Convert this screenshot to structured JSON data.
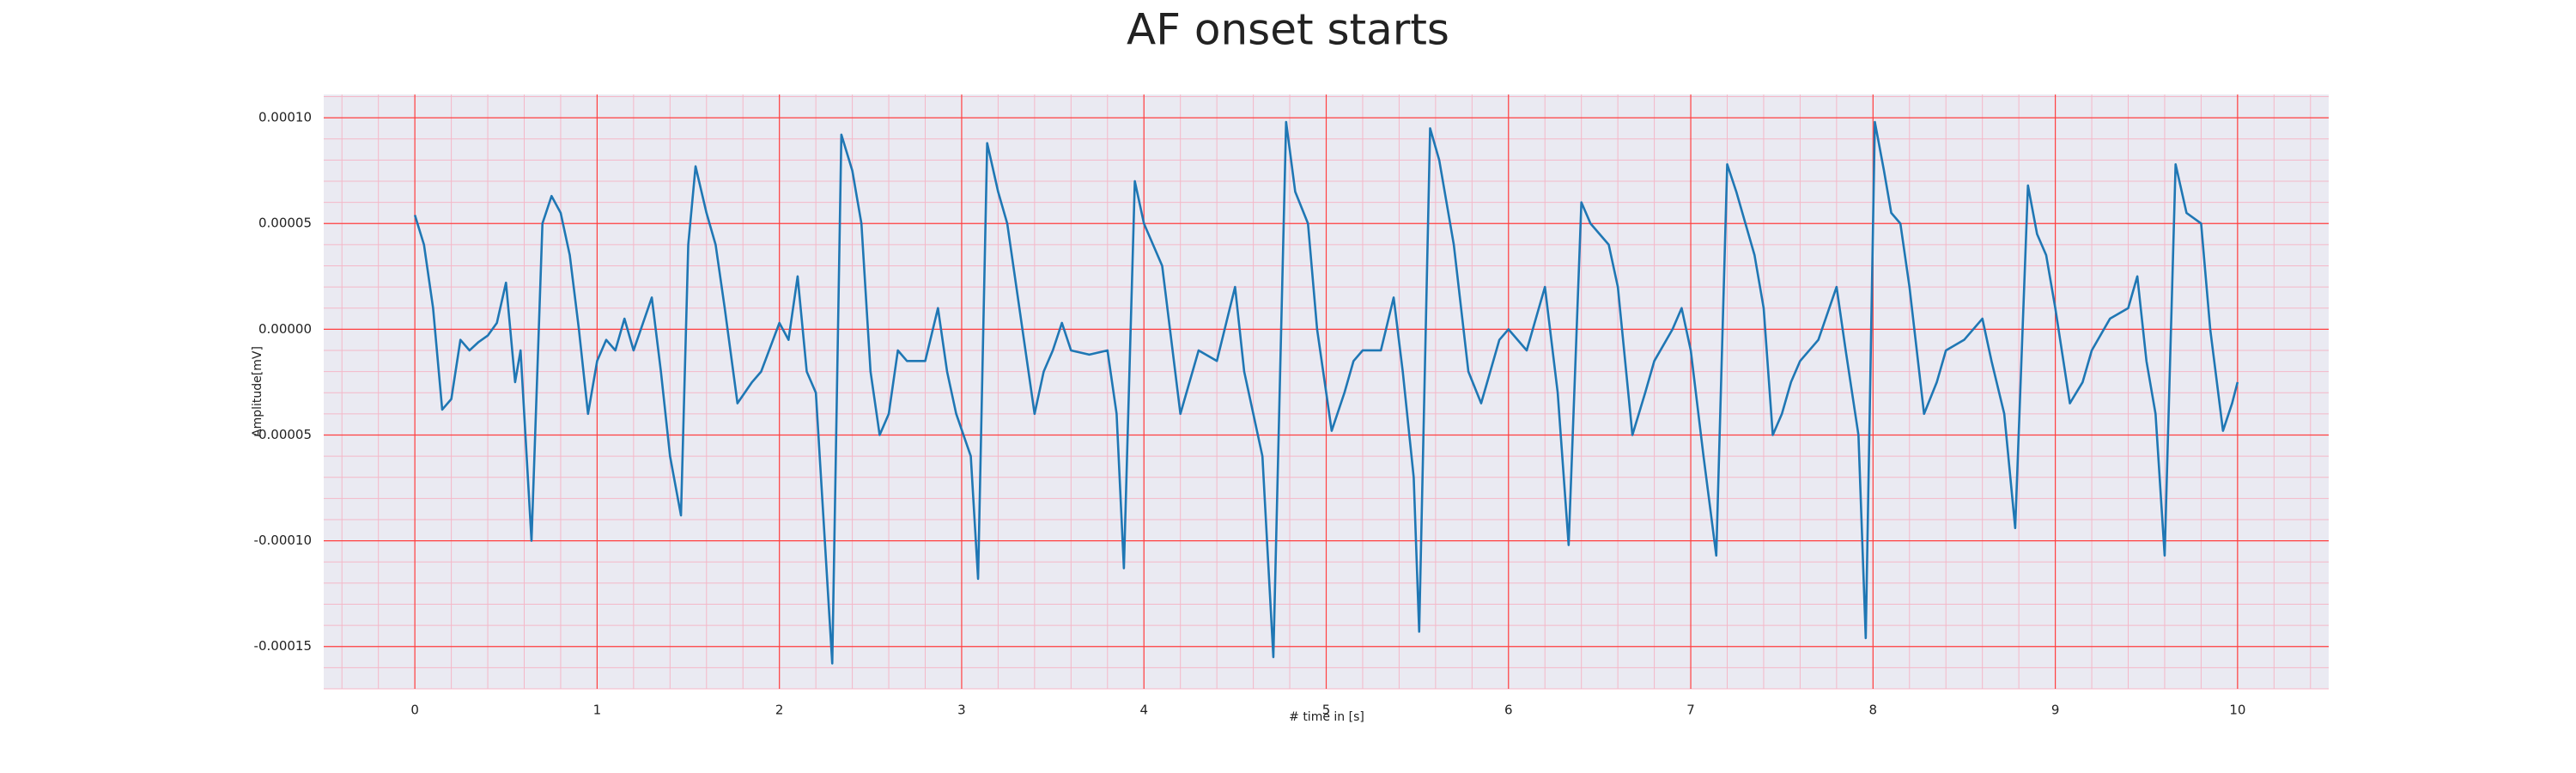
{
  "chart_data": {
    "type": "line",
    "title": "AF onset starts",
    "xlabel": "# time in [s]",
    "ylabel": "Amplitude[mV]",
    "color": "#1f77b4",
    "grid": true,
    "grid_color": "#ff4040",
    "minor_grid": true,
    "minor_grid_color": "#f4b8c8",
    "background": "#eaeaf2",
    "xlim": [
      -0.5,
      10.5
    ],
    "ylim": [
      -0.00017,
      0.000111
    ],
    "xticks": [
      0,
      1,
      2,
      3,
      4,
      5,
      6,
      7,
      8,
      9,
      10
    ],
    "yticks": [
      {
        "value": -0.00015,
        "label": "-0.00015"
      },
      {
        "value": -0.0001,
        "label": "-0.00010"
      },
      {
        "value": -5e-05,
        "label": "-0.00005"
      },
      {
        "value": 0,
        "label": "0.00000"
      },
      {
        "value": 5e-05,
        "label": "0.00005"
      },
      {
        "value": 0.0001,
        "label": "0.00010"
      }
    ],
    "x": [
      0,
      0.05,
      0.1,
      0.15,
      0.2,
      0.25,
      0.3,
      0.35,
      0.4,
      0.45,
      0.5,
      0.55,
      0.58,
      0.64,
      0.7,
      0.75,
      0.8,
      0.85,
      0.9,
      0.95,
      1.0,
      1.05,
      1.1,
      1.15,
      1.2,
      1.3,
      1.35,
      1.4,
      1.46,
      1.5,
      1.54,
      1.6,
      1.65,
      1.7,
      1.77,
      1.85,
      1.9,
      2.0,
      2.05,
      2.1,
      2.15,
      2.2,
      2.29,
      2.34,
      2.4,
      2.45,
      2.5,
      2.55,
      2.6,
      2.65,
      2.7,
      2.8,
      2.87,
      2.92,
      2.97,
      3.05,
      3.09,
      3.14,
      3.2,
      3.25,
      3.3,
      3.4,
      3.45,
      3.5,
      3.55,
      3.6,
      3.7,
      3.8,
      3.85,
      3.89,
      3.95,
      4.0,
      4.05,
      4.1,
      4.2,
      4.25,
      4.3,
      4.4,
      4.5,
      4.55,
      4.65,
      4.71,
      4.78,
      4.83,
      4.9,
      4.95,
      5.03,
      5.1,
      5.15,
      5.2,
      5.3,
      5.37,
      5.42,
      5.48,
      5.51,
      5.57,
      5.62,
      5.7,
      5.78,
      5.85,
      5.9,
      5.95,
      6.0,
      6.1,
      6.2,
      6.27,
      6.33,
      6.4,
      6.45,
      6.55,
      6.6,
      6.68,
      6.75,
      6.8,
      6.9,
      6.95,
      7.0,
      7.07,
      7.14,
      7.2,
      7.25,
      7.3,
      7.35,
      7.4,
      7.45,
      7.5,
      7.55,
      7.6,
      7.7,
      7.8,
      7.85,
      7.92,
      7.96,
      8.01,
      8.06,
      8.1,
      8.15,
      8.2,
      8.28,
      8.35,
      8.4,
      8.5,
      8.6,
      8.65,
      8.72,
      8.78,
      8.85,
      8.9,
      8.95,
      9.0,
      9.08,
      9.15,
      9.2,
      9.3,
      9.4,
      9.45,
      9.5,
      9.55,
      9.6,
      9.66,
      9.72,
      9.8,
      9.85,
      9.92,
      9.97,
      10.0
    ],
    "values": [
      5.4e-05,
      4e-05,
      1e-05,
      -3.8e-05,
      -3.3e-05,
      -5e-06,
      -1e-05,
      -6e-06,
      -3e-06,
      3e-06,
      2.2e-05,
      -2.5e-05,
      -1e-05,
      -0.0001,
      5e-05,
      6.3e-05,
      5.5e-05,
      3.5e-05,
      0,
      -4e-05,
      -1.5e-05,
      -5e-06,
      -1e-05,
      5e-06,
      -1e-05,
      1.5e-05,
      -2e-05,
      -6e-05,
      -8.8e-05,
      4e-05,
      7.7e-05,
      5.5e-05,
      4e-05,
      1e-05,
      -3.5e-05,
      -2.5e-05,
      -2e-05,
      3e-06,
      -5e-06,
      2.5e-05,
      -2e-05,
      -3e-05,
      -0.000158,
      9.2e-05,
      7.5e-05,
      5e-05,
      -2e-05,
      -5e-05,
      -4e-05,
      -1e-05,
      -1.5e-05,
      -1.5e-05,
      1e-05,
      -2e-05,
      -4e-05,
      -6e-05,
      -0.000118,
      8.8e-05,
      6.5e-05,
      5e-05,
      2e-05,
      -4e-05,
      -2e-05,
      -1e-05,
      3e-06,
      -1e-05,
      -1.2e-05,
      -1e-05,
      -4e-05,
      -0.000113,
      7e-05,
      5e-05,
      4e-05,
      3e-05,
      -4e-05,
      -2.5e-05,
      -1e-05,
      -1.5e-05,
      2e-05,
      -2e-05,
      -6e-05,
      -0.000155,
      9.8e-05,
      6.5e-05,
      5e-05,
      0,
      -4.8e-05,
      -3e-05,
      -1.5e-05,
      -1e-05,
      -1e-05,
      1.5e-05,
      -2e-05,
      -7e-05,
      -0.000143,
      9.5e-05,
      8e-05,
      4e-05,
      -2e-05,
      -3.5e-05,
      -2e-05,
      -5e-06,
      0,
      -1e-05,
      2e-05,
      -3e-05,
      -0.000102,
      6e-05,
      5e-05,
      4e-05,
      2e-05,
      -5e-05,
      -3e-05,
      -1.5e-05,
      0,
      1e-05,
      -1e-05,
      -6e-05,
      -0.000107,
      7.8e-05,
      6.5e-05,
      5e-05,
      3.5e-05,
      1e-05,
      -5e-05,
      -4e-05,
      -2.5e-05,
      -1.5e-05,
      -5e-06,
      2e-05,
      -1e-05,
      -5e-05,
      -0.000146,
      9.8e-05,
      7.5e-05,
      5.5e-05,
      5e-05,
      2e-05,
      -4e-05,
      -2.5e-05,
      -1e-05,
      -5e-06,
      5e-06,
      -1.5e-05,
      -4e-05,
      -9.4e-05,
      6.8e-05,
      4.5e-05,
      3.5e-05,
      1e-05,
      -3.5e-05,
      -2.5e-05,
      -1e-05,
      5e-06,
      1e-05,
      2.5e-05,
      -1.5e-05,
      -4e-05,
      -0.000107,
      7.8e-05,
      5.5e-05,
      5e-05,
      0,
      -4.8e-05,
      -3.5e-05,
      -2.5e-05
    ]
  }
}
